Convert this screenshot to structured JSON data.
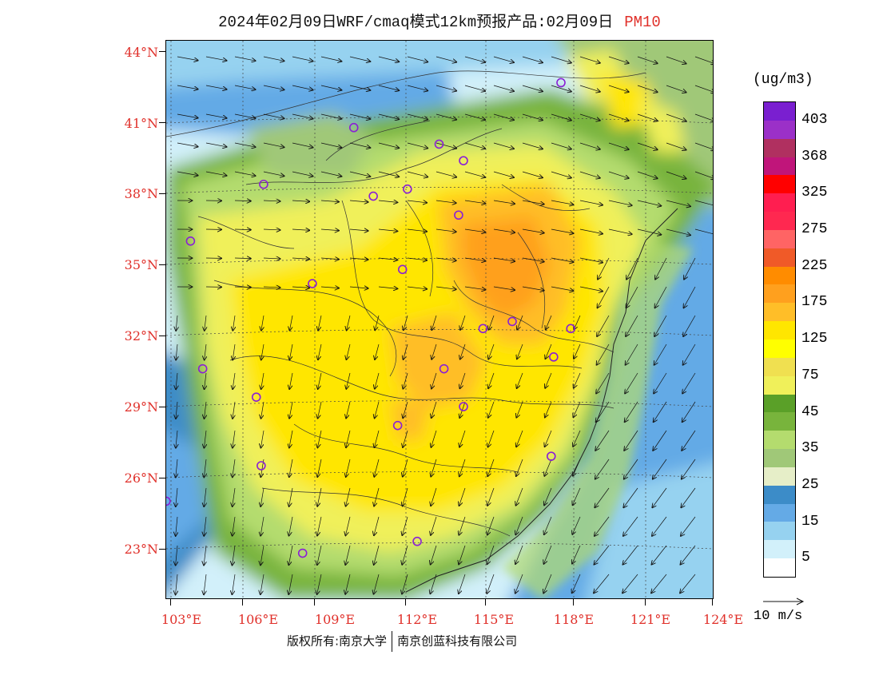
{
  "title": {
    "main": "2024年02月09日WRF/cmaq模式12km预报产品:02月09日",
    "pollutant": "PM10"
  },
  "axes": {
    "y_labels": [
      "44°N",
      "41°N",
      "38°N",
      "35°N",
      "32°N",
      "29°N",
      "26°N",
      "23°N"
    ],
    "x_labels": [
      "103°E",
      "106°E",
      "109°E",
      "112°E",
      "115°E",
      "118°E",
      "121°E",
      "124°E"
    ]
  },
  "colorbar": {
    "unit": "(ug/m3)",
    "levels": [
      {
        "label": "403",
        "color": "#7a1fd0"
      },
      {
        "label": "",
        "color": "#9b30c8"
      },
      {
        "label": "368",
        "color": "#b03060"
      },
      {
        "label": "",
        "color": "#c0157a"
      },
      {
        "label": "325",
        "color": "#ff0000"
      },
      {
        "label": "",
        "color": "#ff1e50"
      },
      {
        "label": "275",
        "color": "#ff2850"
      },
      {
        "label": "",
        "color": "#ff6464"
      },
      {
        "label": "225",
        "color": "#f05a28"
      },
      {
        "label": "",
        "color": "#ff8c00"
      },
      {
        "label": "175",
        "color": "#ffa01e"
      },
      {
        "label": "",
        "color": "#ffbe28"
      },
      {
        "label": "125",
        "color": "#ffe600"
      },
      {
        "label": "",
        "color": "#ffff00"
      },
      {
        "label": "75",
        "color": "#f0e050"
      },
      {
        "label": "",
        "color": "#f0f05a"
      },
      {
        "label": "45",
        "color": "#5aa028"
      },
      {
        "label": "",
        "color": "#78b43c"
      },
      {
        "label": "35",
        "color": "#b4dc6e"
      },
      {
        "label": "",
        "color": "#a0c878"
      },
      {
        "label": "25",
        "color": "#e6eec8"
      },
      {
        "label": "",
        "color": "#3c8cc8"
      },
      {
        "label": "15",
        "color": "#64aae6"
      },
      {
        "label": "",
        "color": "#96d2f0"
      },
      {
        "label": "5",
        "color": "#d2f0fa"
      },
      {
        "label": "",
        "color": "#ffffff"
      }
    ]
  },
  "wind_reference": "10 m/s",
  "footer": {
    "copyright": "版权所有:南京大学",
    "company": "南京创蓝科技有限公司"
  },
  "cities": [
    {
      "lon": 119.0,
      "lat": 42.7
    },
    {
      "lon": 110.5,
      "lat": 40.8
    },
    {
      "lon": 114.0,
      "lat": 40.1
    },
    {
      "lon": 115.0,
      "lat": 39.4
    },
    {
      "lon": 106.8,
      "lat": 38.4
    },
    {
      "lon": 111.3,
      "lat": 37.9
    },
    {
      "lon": 112.7,
      "lat": 38.2
    },
    {
      "lon": 114.8,
      "lat": 37.1
    },
    {
      "lon": 103.8,
      "lat": 36.0
    },
    {
      "lon": 112.5,
      "lat": 34.8
    },
    {
      "lon": 108.8,
      "lat": 34.2
    },
    {
      "lon": 117.0,
      "lat": 32.6
    },
    {
      "lon": 115.8,
      "lat": 32.3
    },
    {
      "lon": 119.4,
      "lat": 32.3
    },
    {
      "lon": 118.7,
      "lat": 31.1
    },
    {
      "lon": 114.2,
      "lat": 30.6
    },
    {
      "lon": 104.3,
      "lat": 30.6
    },
    {
      "lon": 106.5,
      "lat": 29.4
    },
    {
      "lon": 115.0,
      "lat": 29.0
    },
    {
      "lon": 112.3,
      "lat": 28.2
    },
    {
      "lon": 106.7,
      "lat": 26.5
    },
    {
      "lon": 118.6,
      "lat": 26.9
    },
    {
      "lon": 102.8,
      "lat": 25.0
    },
    {
      "lon": 108.4,
      "lat": 22.8
    },
    {
      "lon": 113.1,
      "lat": 23.3
    }
  ]
}
